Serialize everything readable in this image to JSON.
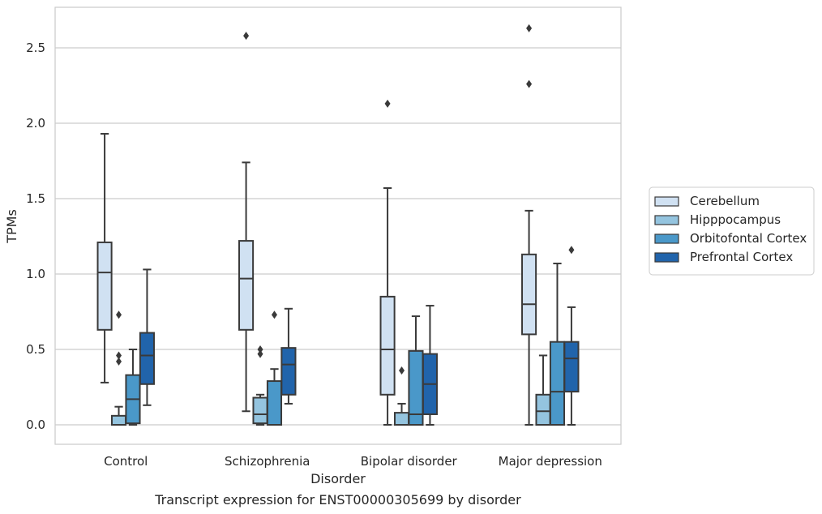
{
  "caption": "Transcript expression for ENST00000305699 by disorder",
  "chart_data": {
    "type": "boxplot",
    "xlabel": "Disorder",
    "ylabel": "TPMs",
    "ylim": [
      -0.13,
      2.77
    ],
    "yticks": [
      0.0,
      0.5,
      1.0,
      1.5,
      2.0,
      2.5
    ],
    "ytick_labels": [
      "0.0",
      "0.5",
      "1.0",
      "1.5",
      "2.0",
      "2.5"
    ],
    "grid": true,
    "legend_position": "right",
    "categories": [
      "Control",
      "Schizophrenia",
      "Bipolar disorder",
      "Major depression"
    ],
    "series": [
      {
        "name": "Cerebellum",
        "color": "#d0e1f2",
        "boxes": [
          {
            "whislo": 0.28,
            "q1": 0.63,
            "med": 1.01,
            "q3": 1.21,
            "whishi": 1.93,
            "fliers": []
          },
          {
            "whislo": 0.09,
            "q1": 0.63,
            "med": 0.97,
            "q3": 1.22,
            "whishi": 1.74,
            "fliers": [
              2.58
            ]
          },
          {
            "whislo": 0.0,
            "q1": 0.2,
            "med": 0.5,
            "q3": 0.85,
            "whishi": 1.57,
            "fliers": [
              2.13
            ]
          },
          {
            "whislo": 0.0,
            "q1": 0.6,
            "med": 0.8,
            "q3": 1.13,
            "whishi": 1.42,
            "fliers": [
              2.26,
              2.63
            ]
          }
        ]
      },
      {
        "name": "Hipppocampus",
        "color": "#94c4df",
        "boxes": [
          {
            "whislo": 0.0,
            "q1": 0.0,
            "med": 0.0,
            "q3": 0.06,
            "whishi": 0.12,
            "fliers": [
              0.42,
              0.46,
              0.73
            ]
          },
          {
            "whislo": 0.0,
            "q1": 0.01,
            "med": 0.07,
            "q3": 0.18,
            "whishi": 0.2,
            "fliers": [
              0.47,
              0.5
            ]
          },
          {
            "whislo": 0.0,
            "q1": 0.0,
            "med": 0.0,
            "q3": 0.08,
            "whishi": 0.14,
            "fliers": [
              0.36
            ]
          },
          {
            "whislo": 0.0,
            "q1": 0.0,
            "med": 0.09,
            "q3": 0.2,
            "whishi": 0.46,
            "fliers": []
          }
        ]
      },
      {
        "name": "Orbitofontal Cortex",
        "color": "#4a98c9",
        "boxes": [
          {
            "whislo": 0.0,
            "q1": 0.01,
            "med": 0.17,
            "q3": 0.33,
            "whishi": 0.5,
            "fliers": []
          },
          {
            "whislo": 0.0,
            "q1": 0.0,
            "med": 0.0,
            "q3": 0.29,
            "whishi": 0.37,
            "fliers": [
              0.73
            ]
          },
          {
            "whislo": 0.0,
            "q1": 0.0,
            "med": 0.07,
            "q3": 0.49,
            "whishi": 0.72,
            "fliers": []
          },
          {
            "whislo": 0.0,
            "q1": 0.0,
            "med": 0.22,
            "q3": 0.55,
            "whishi": 1.07,
            "fliers": []
          }
        ]
      },
      {
        "name": "Prefrontal Cortex",
        "color": "#2164ab",
        "boxes": [
          {
            "whislo": 0.13,
            "q1": 0.27,
            "med": 0.46,
            "q3": 0.61,
            "whishi": 1.03,
            "fliers": []
          },
          {
            "whislo": 0.14,
            "q1": 0.2,
            "med": 0.4,
            "q3": 0.51,
            "whishi": 0.77,
            "fliers": []
          },
          {
            "whislo": 0.0,
            "q1": 0.07,
            "med": 0.27,
            "q3": 0.47,
            "whishi": 0.79,
            "fliers": []
          },
          {
            "whislo": 0.0,
            "q1": 0.22,
            "med": 0.44,
            "q3": 0.55,
            "whishi": 0.78,
            "fliers": [
              1.16
            ]
          }
        ]
      }
    ]
  }
}
